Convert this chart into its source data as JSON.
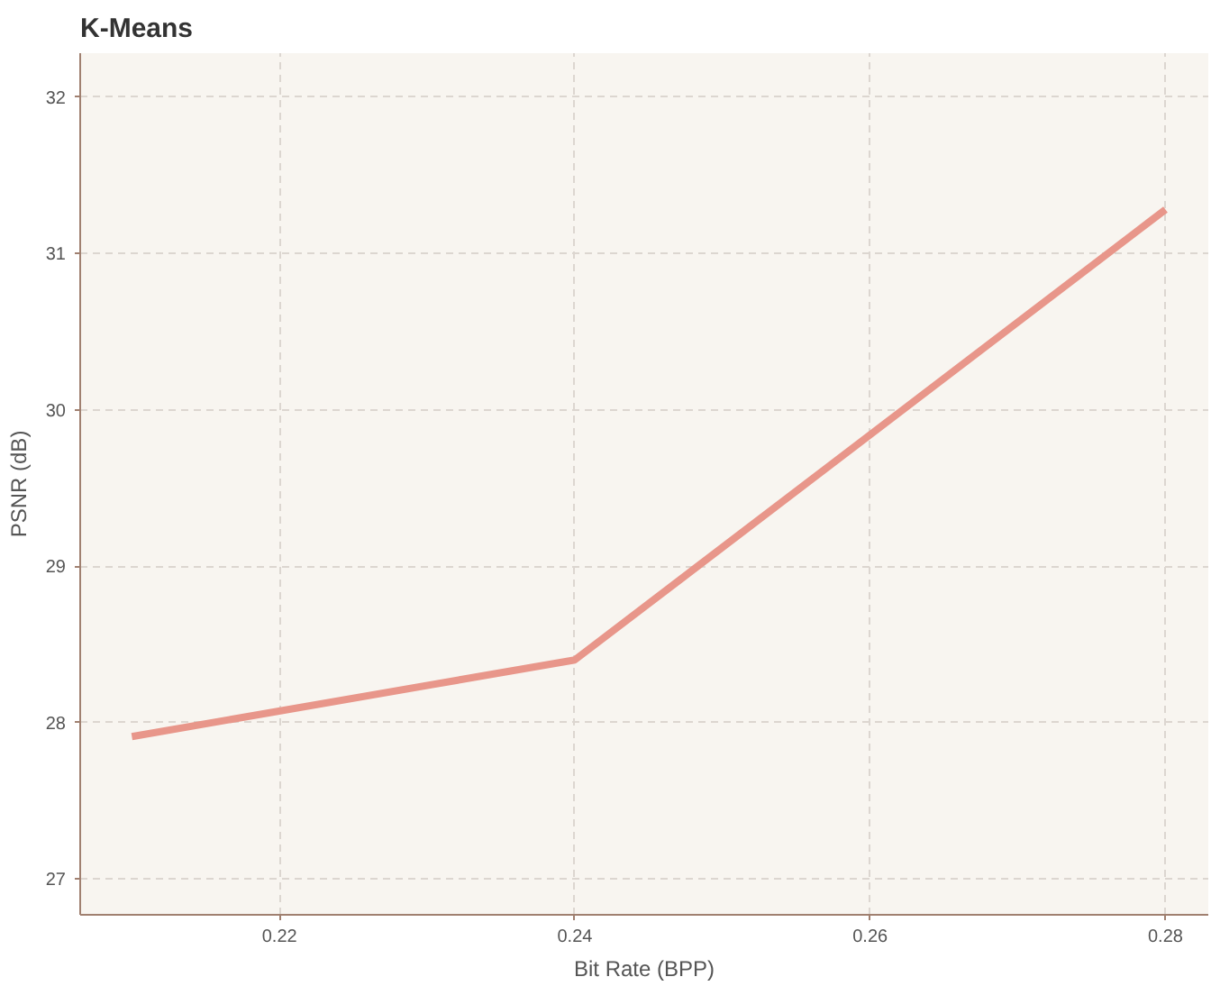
{
  "chart_data": {
    "type": "line",
    "title": "K-Means",
    "xlabel": "Bit Rate (BPP)",
    "ylabel": "PSNR (dB)",
    "x": [
      0.21,
      0.24,
      0.28
    ],
    "series": [
      {
        "color": "#e8968a",
        "values": [
          27.91,
          28.4,
          31.28
        ]
      }
    ],
    "xlim": [
      0.2065,
      0.2829
    ],
    "ylim": [
      26.77,
      32.28
    ],
    "xticks": [
      0.22,
      0.24,
      0.26,
      0.28
    ],
    "yticks": [
      27,
      28,
      29,
      30,
      31,
      32
    ],
    "grid": true,
    "marker": "none",
    "line_style": "solid"
  }
}
